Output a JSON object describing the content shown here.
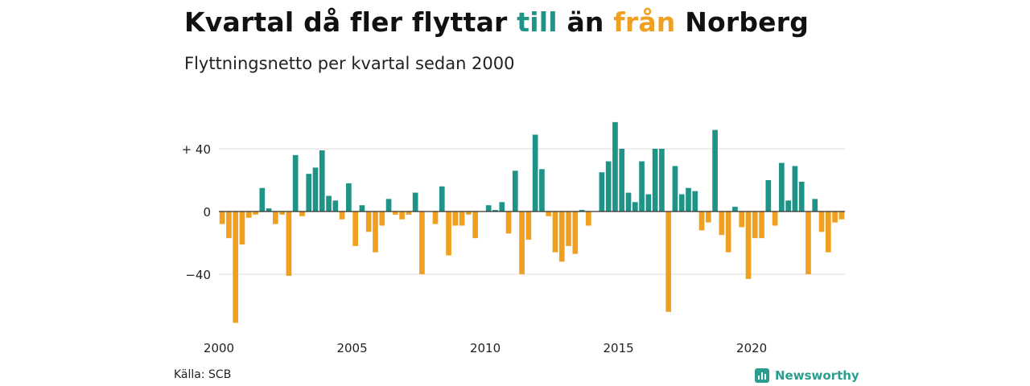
{
  "title": {
    "part1": "Kvartal då fler flyttar ",
    "highlight_pos": "till",
    "part2": " än ",
    "highlight_neg": "från",
    "part3": " Norberg"
  },
  "subtitle": "Flyttningsnetto per kvartal sedan 2000",
  "source": "Källa: SCB",
  "brand": {
    "name": "Newsworthy",
    "icon": "newsworthy-logo-icon"
  },
  "colors": {
    "positive": "#1f9386",
    "negative": "#f0a020",
    "grid": "#dddddd",
    "zero": "#333333"
  },
  "chart_data": {
    "type": "bar",
    "title": "Kvartal då fler flyttar till än från Norberg",
    "subtitle": "Flyttningsnetto per kvartal sedan 2000",
    "xlabel": "",
    "ylabel": "",
    "ylim": [
      -72,
      60
    ],
    "yticks": [
      {
        "value": 40,
        "label": "+ 40"
      },
      {
        "value": 0,
        "label": "0"
      },
      {
        "value": -40,
        "label": "−40"
      }
    ],
    "xticks": [
      {
        "value": 2000,
        "label": "2000"
      },
      {
        "value": 2005,
        "label": "2005"
      },
      {
        "value": 2010,
        "label": "2010"
      },
      {
        "value": 2015,
        "label": "2015"
      },
      {
        "value": 2020,
        "label": "2020"
      }
    ],
    "start_year": 2000,
    "values": [
      -8,
      -17,
      -71,
      -21,
      -4,
      -2,
      15,
      2,
      -8,
      -2,
      -41,
      36,
      -3,
      24,
      28,
      39,
      10,
      7,
      -5,
      18,
      -22,
      4,
      -13,
      -26,
      -9,
      8,
      -2,
      -5,
      -2,
      12,
      -40,
      0,
      -8,
      16,
      -28,
      -9,
      -9,
      -2,
      -17,
      0,
      4,
      1,
      6,
      -14,
      26,
      -40,
      -18,
      49,
      27,
      -3,
      -26,
      -32,
      -22,
      -27,
      1,
      -9,
      0,
      25,
      32,
      57,
      40,
      12,
      6,
      32,
      11,
      40,
      40,
      -64,
      29,
      11,
      15,
      13,
      -12,
      -7,
      52,
      -15,
      -26,
      3,
      -10,
      -43,
      -17,
      -17,
      20,
      -9,
      31,
      7,
      29,
      19,
      -40,
      8,
      -13,
      -26,
      -7,
      -5
    ],
    "grid": true,
    "legend": "none"
  }
}
